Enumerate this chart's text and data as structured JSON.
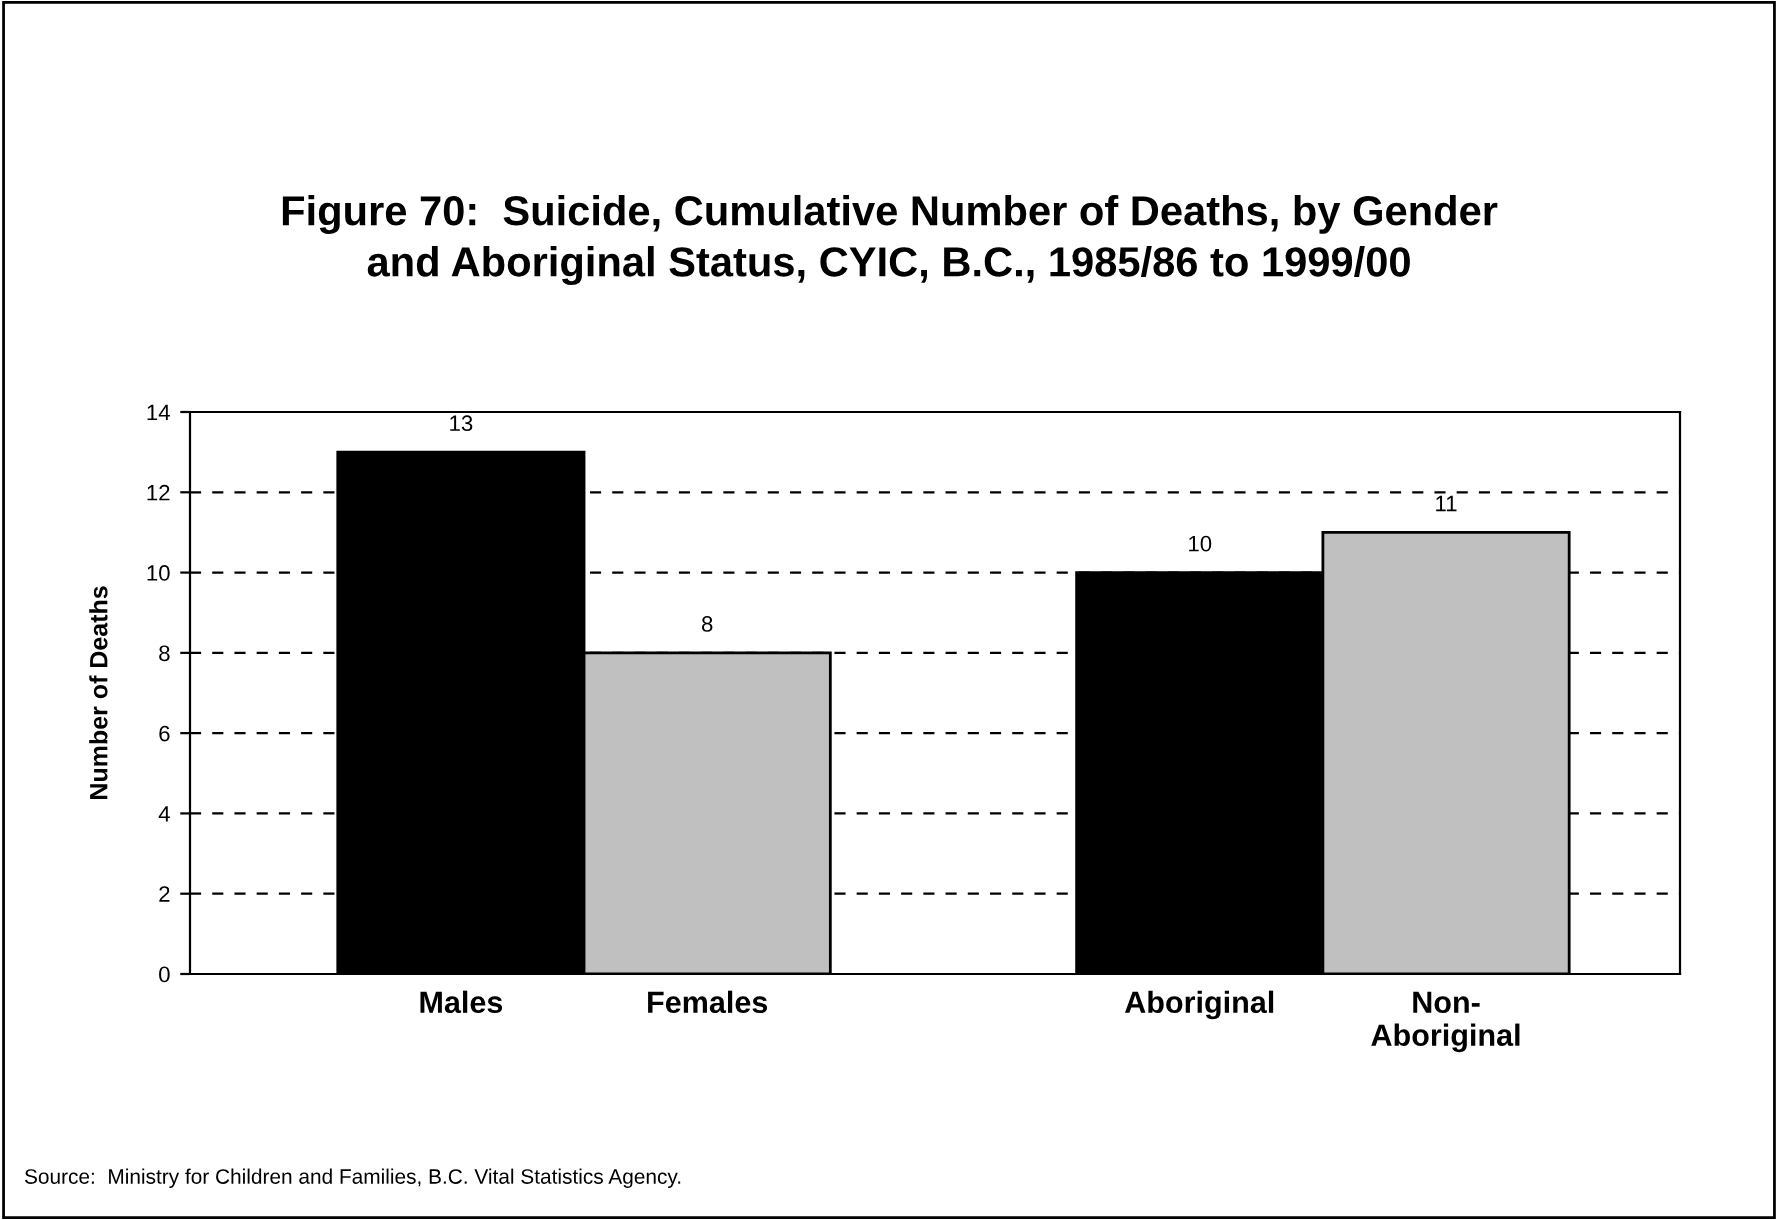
{
  "chart_data": {
    "type": "bar",
    "title": "Figure 70:  Suicide, Cumulative Number of Deaths, by Gender\nand Aboriginal Status, CYIC, B.C., 1985/86 to 1999/00",
    "ylabel": "Number of Deaths",
    "categories": [
      "Males",
      "Females",
      null,
      "Aboriginal",
      "Non-\nAboriginal"
    ],
    "values": [
      13,
      8,
      null,
      10,
      11
    ],
    "colors": [
      "#000000",
      "#c0c0c0",
      null,
      "#000000",
      "#c0c0c0"
    ],
    "ylim": [
      0,
      14
    ],
    "yticks": [
      0,
      2,
      4,
      6,
      8,
      10,
      12,
      14
    ],
    "grid": "y",
    "data_labels": true,
    "annotations": [
      "Source:  Ministry for Children and Families, B.C. Vital Statistics Agency."
    ]
  }
}
